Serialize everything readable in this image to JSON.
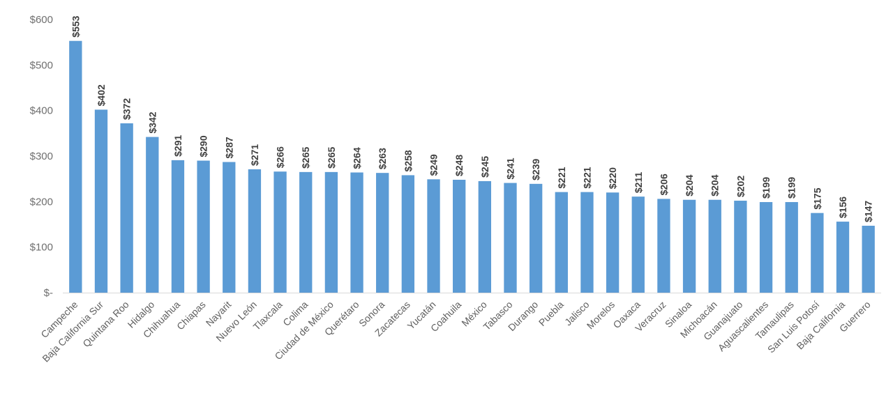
{
  "chart_data": {
    "type": "bar",
    "categories": [
      "Campeche",
      "Baja California Sur",
      "Quintana Roo",
      "Hidalgo",
      "Chihuahua",
      "Chiapas",
      "Nayarit",
      "Nuevo León",
      "Tlaxcala",
      "Colima",
      "Ciudad de México",
      "Querétaro",
      "Sonora",
      "Zacatecas",
      "Yucatán",
      "Coahuila",
      "México",
      "Tabasco",
      "Durango",
      "Puebla",
      "Jalisco",
      "Morelos",
      "Oaxaca",
      "Veracruz",
      "Sinaloa",
      "Michoacán",
      "Guanajuato",
      "Aguascalientes",
      "Tamaulipas",
      "San Luis Potosí",
      "Baja California",
      "Guerrero"
    ],
    "values": [
      553,
      402,
      372,
      342,
      291,
      290,
      287,
      271,
      266,
      265,
      265,
      264,
      263,
      258,
      249,
      248,
      245,
      241,
      239,
      221,
      221,
      220,
      211,
      206,
      204,
      204,
      202,
      199,
      199,
      175,
      156,
      147
    ],
    "data_labels": [
      "$553",
      "$402",
      "$372",
      "$342",
      "$291",
      "$290",
      "$287",
      "$271",
      "$266",
      "$265",
      "$265",
      "$264",
      "$263",
      "$258",
      "$249",
      "$248",
      "$245",
      "$241",
      "$239",
      "$221",
      "$221",
      "$220",
      "$211",
      "$206",
      "$204",
      "$204",
      "$202",
      "$199",
      "$199",
      "$175",
      "$156",
      "$147"
    ],
    "y_ticks": [
      0,
      100,
      200,
      300,
      400,
      500,
      600
    ],
    "y_tick_labels": [
      "$-",
      "$100",
      "$200",
      "$300",
      "$400",
      "$500",
      "$600"
    ],
    "ylim": [
      0,
      600
    ],
    "title": "",
    "xlabel": "",
    "ylabel": "",
    "grid": false,
    "legend": "none",
    "colors": {
      "bar": "#5b9bd5",
      "data_label": "#404040",
      "tick_label": "#6f6f6f",
      "axis": "#d9d9d9"
    }
  }
}
